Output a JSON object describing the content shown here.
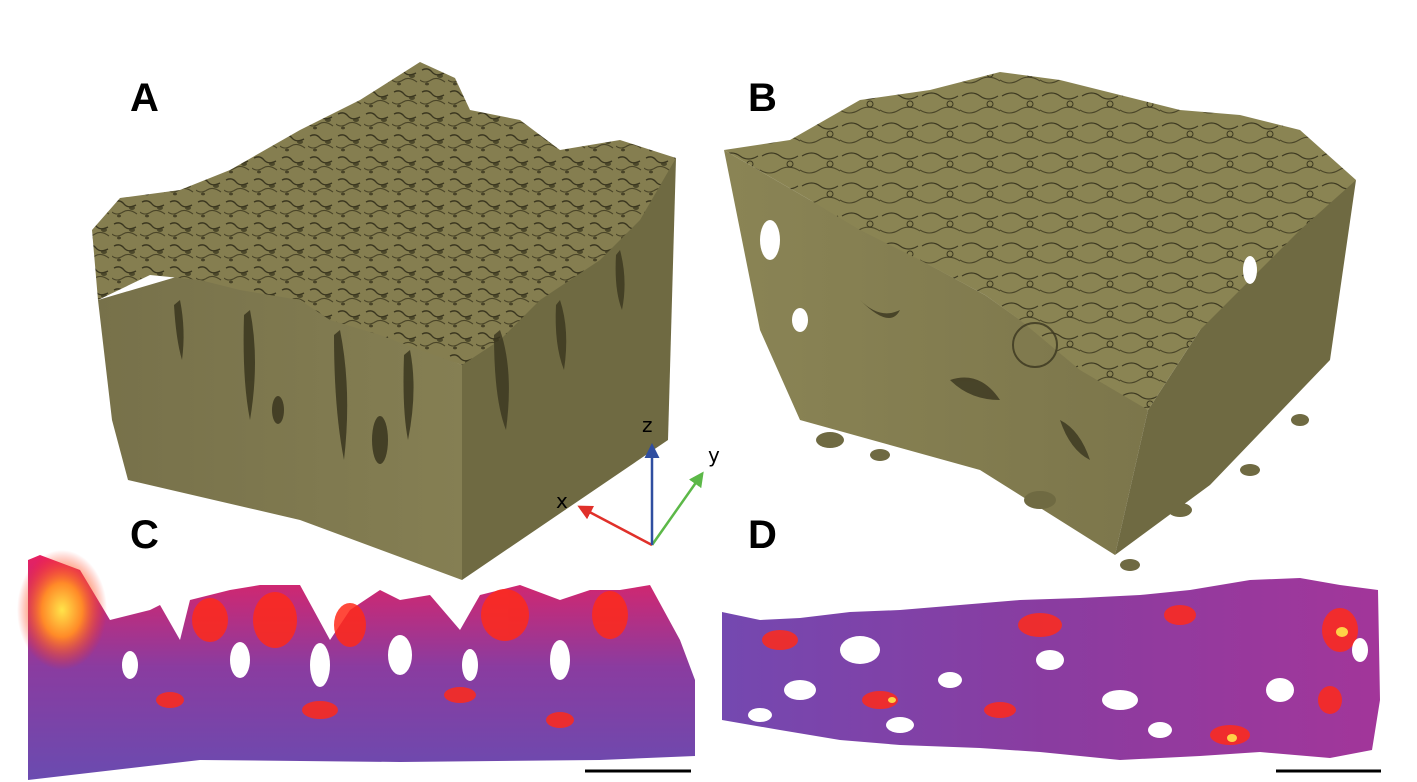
{
  "panels": {
    "a": {
      "label": "A"
    },
    "b": {
      "label": "B"
    },
    "c": {
      "label": "C"
    },
    "d": {
      "label": "D"
    }
  },
  "axes": {
    "x": {
      "label": "x",
      "color": "#e0302a"
    },
    "y": {
      "label": "y",
      "color": "#5cb848"
    },
    "z": {
      "label": "z",
      "color": "#2f4ea0"
    }
  },
  "colors": {
    "solid": "#7d774a",
    "solid_top": "#8b8452",
    "solid_shadow": "#3a361f",
    "heat_low": "#6a4bb0",
    "heat_mid": "#e0206a",
    "heat_high": "#ff2a1a",
    "heat_peak": "#ffe44a"
  },
  "scale_bars": [
    {
      "panel": "C"
    },
    {
      "panel": "D"
    }
  ]
}
